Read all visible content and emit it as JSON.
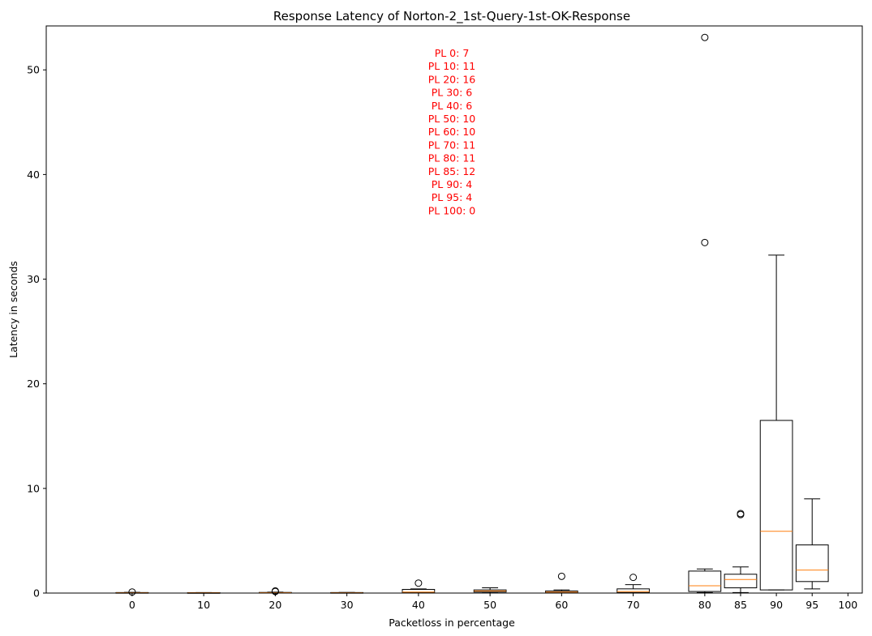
{
  "chart_data": {
    "type": "box",
    "title": "Response Latency of Norton-2_1st-Query-1st-OK-Response",
    "xlabel": "Packetloss in percentage",
    "ylabel": "Latency in seconds",
    "ylim": [
      0,
      54.2
    ],
    "xlim": [
      -12,
      102
    ],
    "yticks": [
      0,
      10,
      20,
      30,
      40,
      50
    ],
    "xticks": [
      0,
      10,
      20,
      30,
      40,
      50,
      60,
      70,
      80,
      85,
      90,
      95,
      100
    ],
    "grid": false,
    "annotation_color": "#ff0000",
    "median_color": "#ff7f0e",
    "annotations": [
      "PL 0: 7",
      "PL 10: 11",
      "PL 20: 16",
      "PL 30: 6",
      "PL 40: 6",
      "PL 50: 10",
      "PL 60: 10",
      "PL 70: 11",
      "PL 80: 11",
      "PL 85: 12",
      "PL 90: 4",
      "PL 95: 4",
      "PL 100: 0"
    ],
    "boxes": [
      {
        "x": 0,
        "width": 4.5,
        "q1": 0.02,
        "median": 0.03,
        "q3": 0.05,
        "whisker_low": 0.01,
        "whisker_high": 0.07,
        "outliers": [
          0.1
        ]
      },
      {
        "x": 10,
        "width": 4.5,
        "q1": 0.02,
        "median": 0.03,
        "q3": 0.04,
        "whisker_low": 0.01,
        "whisker_high": 0.05,
        "outliers": []
      },
      {
        "x": 20,
        "width": 4.5,
        "q1": 0.02,
        "median": 0.04,
        "q3": 0.06,
        "whisker_low": 0.01,
        "whisker_high": 0.09,
        "outliers": [
          0.15,
          0.2
        ]
      },
      {
        "x": 30,
        "width": 4.5,
        "q1": 0.02,
        "median": 0.03,
        "q3": 0.05,
        "whisker_low": 0.01,
        "whisker_high": 0.06,
        "outliers": []
      },
      {
        "x": 40,
        "width": 4.5,
        "q1": 0.05,
        "median": 0.1,
        "q3": 0.35,
        "whisker_low": 0.02,
        "whisker_high": 0.4,
        "outliers": [
          0.95
        ]
      },
      {
        "x": 50,
        "width": 4.5,
        "q1": 0.1,
        "median": 0.2,
        "q3": 0.3,
        "whisker_low": 0.02,
        "whisker_high": 0.5,
        "outliers": []
      },
      {
        "x": 60,
        "width": 4.5,
        "q1": 0.05,
        "median": 0.1,
        "q3": 0.2,
        "whisker_low": 0.02,
        "whisker_high": 0.3,
        "outliers": [
          1.6
        ]
      },
      {
        "x": 70,
        "width": 4.5,
        "q1": 0.05,
        "median": 0.15,
        "q3": 0.4,
        "whisker_low": 0.02,
        "whisker_high": 0.8,
        "outliers": [
          1.5
        ]
      },
      {
        "x": 80,
        "width": 4.5,
        "q1": 0.15,
        "median": 0.7,
        "q3": 2.1,
        "whisker_low": 0.05,
        "whisker_high": 2.3,
        "outliers": [
          33.5,
          53.1
        ]
      },
      {
        "x": 85,
        "width": 4.5,
        "q1": 0.5,
        "median": 1.3,
        "q3": 1.8,
        "whisker_low": 0.05,
        "whisker_high": 2.5,
        "outliers": [
          7.5,
          7.6
        ]
      },
      {
        "x": 90,
        "width": 4.5,
        "q1": 0.3,
        "median": 5.9,
        "q3": 16.5,
        "whisker_low": 0.3,
        "whisker_high": 32.3,
        "outliers": []
      },
      {
        "x": 95,
        "width": 4.5,
        "q1": 1.1,
        "median": 2.2,
        "q3": 4.6,
        "whisker_low": 0.4,
        "whisker_high": 9.0,
        "outliers": []
      }
    ]
  }
}
